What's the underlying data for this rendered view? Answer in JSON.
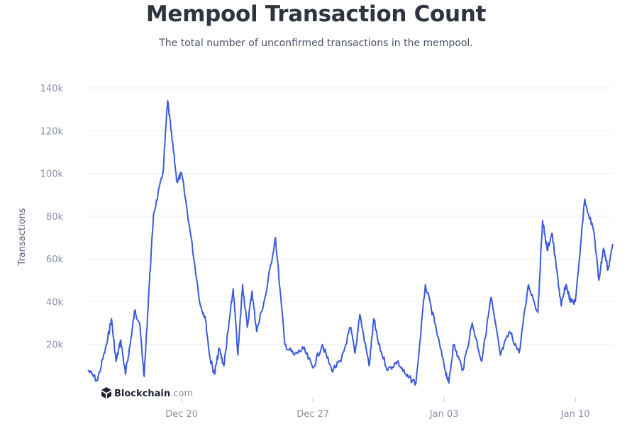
{
  "chart_data": {
    "type": "line",
    "title": "Mempool Transaction Count",
    "subtitle": "The total number of unconfirmed transactions in the mempool.",
    "ylabel": "Transactions",
    "xlabel": "",
    "ylim": [
      0,
      140000
    ],
    "xlim": [
      "2021-12-15",
      "2022-01-12"
    ],
    "y_ticks": [
      20000,
      40000,
      60000,
      80000,
      100000,
      120000,
      140000
    ],
    "y_tick_labels": [
      "20k",
      "40k",
      "60k",
      "80k",
      "100k",
      "120k",
      "140k"
    ],
    "x_ticks": [
      "2021-12-20",
      "2021-12-27",
      "2022-01-03",
      "2022-01-10"
    ],
    "x_tick_labels": [
      "Dec 20",
      "Dec 27",
      "Jan 03",
      "Jan 10"
    ],
    "grid": true,
    "line_color": "#3b5bdb",
    "series": [
      {
        "x": [
          "2021-12-15",
          "2021-12-15 12:00",
          "2021-12-16",
          "2021-12-16 06:00",
          "2021-12-16 12:00",
          "2021-12-16 18:00",
          "2021-12-17",
          "2021-12-17 06:00",
          "2021-12-17 12:00",
          "2021-12-17 18:00",
          "2021-12-18",
          "2021-12-18 06:00",
          "2021-12-18 12:00",
          "2021-12-19",
          "2021-12-19 06:00",
          "2021-12-19 12:00",
          "2021-12-19 18:00",
          "2021-12-20",
          "2021-12-20 12:00",
          "2021-12-21",
          "2021-12-21 06:00",
          "2021-12-21 12:00",
          "2021-12-21 18:00",
          "2021-12-22",
          "2021-12-22 06:00",
          "2021-12-22 12:00",
          "2021-12-22 18:00",
          "2021-12-23",
          "2021-12-23 06:00",
          "2021-12-23 12:00",
          "2021-12-23 18:00",
          "2021-12-24",
          "2021-12-24 12:00",
          "2021-12-25",
          "2021-12-25 12:00",
          "2021-12-26",
          "2021-12-26 12:00",
          "2021-12-27",
          "2021-12-27 12:00",
          "2021-12-28",
          "2021-12-28 12:00",
          "2021-12-29",
          "2021-12-29 06:00",
          "2021-12-29 12:00",
          "2021-12-30",
          "2021-12-30 06:00",
          "2021-12-30 12:00",
          "2021-12-31",
          "2021-12-31 12:00",
          "2022-01-01",
          "2022-01-01 12:00",
          "2022-01-02",
          "2022-01-02 12:00",
          "2022-01-03",
          "2022-01-03 06:00",
          "2022-01-03 12:00",
          "2022-01-04",
          "2022-01-04 12:00",
          "2022-01-05",
          "2022-01-05 12:00",
          "2022-01-06",
          "2022-01-06 12:00",
          "2022-01-07",
          "2022-01-07 12:00",
          "2022-01-08",
          "2022-01-08 06:00",
          "2022-01-08 12:00",
          "2022-01-08 18:00",
          "2022-01-09",
          "2022-01-09 06:00",
          "2022-01-09 12:00",
          "2022-01-09 18:00",
          "2022-01-10",
          "2022-01-10 12:00",
          "2022-01-11",
          "2022-01-11 06:00",
          "2022-01-11 12:00",
          "2022-01-11 18:00",
          "2022-01-12"
        ],
        "y": [
          8000,
          3000,
          20000,
          32000,
          12000,
          22000,
          6000,
          20000,
          36000,
          30000,
          5000,
          45000,
          81000,
          100000,
          134000,
          115000,
          96000,
          100000,
          70000,
          38000,
          33000,
          14000,
          6000,
          18000,
          10000,
          28000,
          46000,
          15000,
          48000,
          28000,
          45000,
          26000,
          44000,
          70000,
          20000,
          15000,
          18000,
          9000,
          20000,
          8000,
          12000,
          28000,
          16000,
          34000,
          10000,
          32000,
          20000,
          8000,
          12000,
          5000,
          2000,
          48000,
          30000,
          10000,
          2000,
          20000,
          8000,
          30000,
          12000,
          42000,
          15000,
          26000,
          16000,
          48000,
          35000,
          78000,
          64000,
          72000,
          55000,
          38000,
          48000,
          40000,
          40000,
          88000,
          72000,
          50000,
          65000,
          55000,
          67000
        ]
      }
    ]
  },
  "brand": {
    "name": "Blockchain",
    "suffix": ".com"
  }
}
